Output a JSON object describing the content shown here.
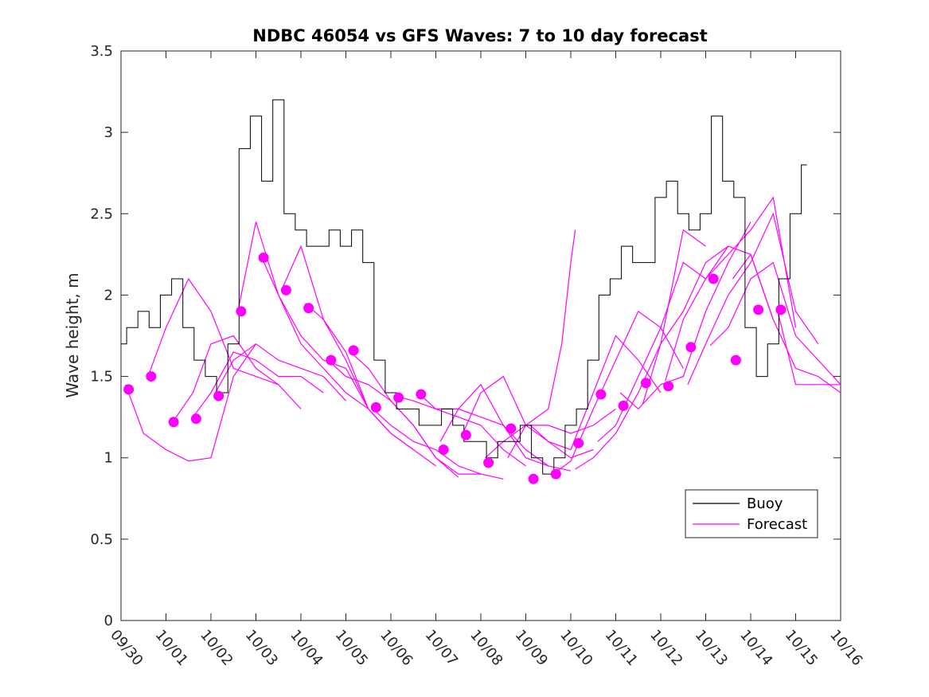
{
  "chart_data": {
    "type": "line",
    "title": "NDBC 46054 vs GFS Waves: 7 to 10 day forecast",
    "xlabel": "",
    "ylabel": "Wave height, m",
    "xlim": [
      0,
      16
    ],
    "ylim": [
      0,
      3.5
    ],
    "grid": false,
    "legend_position": "bottom-right",
    "colors": {
      "buoy": "#000000",
      "forecast": "#ff00ff",
      "axis": "#262626"
    },
    "xticks": [
      0,
      1,
      2,
      3,
      4,
      5,
      6,
      7,
      8,
      9,
      10,
      11,
      12,
      13,
      14,
      15,
      16
    ],
    "xtick_labels": [
      "09/30",
      "10/01",
      "10/02",
      "10/03",
      "10/04",
      "10/05",
      "10/06",
      "10/07",
      "10/08",
      "10/09",
      "10/10",
      "10/11",
      "10/12",
      "10/13",
      "10/14",
      "10/15",
      "10/16"
    ],
    "yticks": [
      0,
      0.5,
      1,
      1.5,
      2,
      2.5,
      3,
      3.5
    ],
    "ytick_labels": [
      "0",
      "0.5",
      "1",
      "1.5",
      "2",
      "2.5",
      "3",
      "3.5"
    ],
    "legend": [
      {
        "key": "buoy",
        "label": "Buoy"
      },
      {
        "key": "forecast",
        "label": "Forecast"
      }
    ],
    "buoy": {
      "name": "Buoy",
      "x": [
        0,
        0.25,
        0.5,
        0.75,
        1,
        1.25,
        1.5,
        1.75,
        2,
        2.25,
        2.5,
        2.75,
        3,
        3.25,
        3.5,
        3.75,
        4,
        4.25,
        4.5,
        4.75,
        5,
        5.25,
        5.5,
        5.75,
        6,
        6.25,
        6.5,
        6.75,
        7,
        7.25,
        7.5,
        7.75,
        8,
        8.25,
        8.5,
        8.75,
        9,
        9.25,
        9.5,
        9.75,
        10,
        10.25,
        10.5,
        10.75,
        11,
        11.25,
        11.5,
        11.75,
        12,
        12.25,
        12.5,
        12.75,
        13,
        13.25,
        13.5,
        13.75,
        14,
        14.25,
        14.5,
        14.75,
        15,
        15.25
      ],
      "y": [
        1.7,
        1.8,
        1.9,
        1.8,
        2.0,
        2.1,
        1.8,
        1.6,
        1.5,
        1.4,
        1.7,
        2.9,
        3.1,
        2.7,
        3.2,
        2.5,
        2.4,
        2.3,
        2.3,
        2.4,
        2.3,
        2.4,
        2.2,
        1.6,
        1.4,
        1.3,
        1.3,
        1.2,
        1.2,
        1.3,
        1.2,
        1.1,
        1.1,
        1.0,
        1.1,
        1.1,
        1.2,
        1.0,
        0.9,
        1.0,
        1.2,
        1.3,
        1.6,
        2.0,
        2.1,
        2.3,
        2.2,
        2.2,
        2.6,
        2.7,
        2.5,
        2.4,
        2.5,
        3.1,
        2.7,
        2.6,
        1.8,
        1.5,
        1.7,
        2.1,
        2.5,
        2.8
      ]
    },
    "forecast_series": [
      {
        "x": [
          0.1,
          0.5,
          1.0,
          1.5,
          2.0,
          2.5,
          3.0
        ],
        "y": [
          1.45,
          1.15,
          1.05,
          0.98,
          1.0,
          1.5,
          1.7
        ]
      },
      {
        "x": [
          0.6,
          1.0,
          1.5,
          2.0,
          2.5,
          3.0,
          3.5
        ],
        "y": [
          1.5,
          1.8,
          2.1,
          1.9,
          1.55,
          1.5,
          1.45
        ]
      },
      {
        "x": [
          1.1,
          1.6,
          2.0,
          2.5,
          3.0,
          3.5,
          4.0
        ],
        "y": [
          1.2,
          1.4,
          1.7,
          1.75,
          1.55,
          1.45,
          1.3
        ]
      },
      {
        "x": [
          1.6,
          2.0,
          2.5,
          3.0,
          3.5,
          4.0,
          4.5
        ],
        "y": [
          1.25,
          1.4,
          1.65,
          1.6,
          1.5,
          1.5,
          1.4
        ]
      },
      {
        "x": [
          2.1,
          2.5,
          3.0,
          3.5,
          4.0,
          4.5,
          5.0
        ],
        "y": [
          1.4,
          1.6,
          1.7,
          1.6,
          1.55,
          1.5,
          1.35
        ]
      },
      {
        "x": [
          2.6,
          3.0,
          3.5,
          4.0,
          4.5,
          5.0,
          5.5
        ],
        "y": [
          1.9,
          2.45,
          2.0,
          1.7,
          1.55,
          1.4,
          1.3
        ]
      },
      {
        "x": [
          3.1,
          3.5,
          4.0,
          4.5,
          5.0,
          5.5,
          6.0
        ],
        "y": [
          2.25,
          2.0,
          1.75,
          1.6,
          1.55,
          1.3,
          1.15
        ]
      },
      {
        "x": [
          3.6,
          4.0,
          4.5,
          5.0,
          5.5,
          6.0,
          6.5
        ],
        "y": [
          2.05,
          2.3,
          1.85,
          1.6,
          1.3,
          1.15,
          1.05
        ]
      },
      {
        "x": [
          4.1,
          4.5,
          5.0,
          5.5,
          6.0,
          6.5,
          7.0
        ],
        "y": [
          1.95,
          1.85,
          1.65,
          1.3,
          1.15,
          1.05,
          0.95
        ]
      },
      {
        "x": [
          4.6,
          5.0,
          5.5,
          6.0,
          6.5,
          7.0,
          7.5
        ],
        "y": [
          1.6,
          1.5,
          1.45,
          1.35,
          1.2,
          1.0,
          0.88
        ]
      },
      {
        "x": [
          5.1,
          5.5,
          6.0,
          6.5,
          7.0,
          7.5,
          8.0
        ],
        "y": [
          1.65,
          1.55,
          1.35,
          1.2,
          1.0,
          0.9,
          0.9
        ]
      },
      {
        "x": [
          5.6,
          6.0,
          6.5,
          7.0,
          7.5,
          8.0,
          8.5
        ],
        "y": [
          1.3,
          1.2,
          1.1,
          1.05,
          0.95,
          0.9,
          0.87
        ]
      },
      {
        "x": [
          6.1,
          6.5,
          7.0,
          7.5,
          8.0,
          8.5,
          9.0
        ],
        "y": [
          1.38,
          1.35,
          1.3,
          1.25,
          1.2,
          1.05,
          0.95
        ]
      },
      {
        "x": [
          6.6,
          7.0,
          7.5,
          8.0,
          8.5,
          9.0,
          9.5
        ],
        "y": [
          1.4,
          1.3,
          1.3,
          1.25,
          1.2,
          1.05,
          0.95
        ]
      },
      {
        "x": [
          7.1,
          7.5,
          8.0,
          8.5,
          9.0,
          9.5,
          10.0
        ],
        "y": [
          1.1,
          1.3,
          1.45,
          1.2,
          1.0,
          0.95,
          0.92
        ]
      },
      {
        "x": [
          7.6,
          8.0,
          8.5,
          9.0,
          9.5,
          10.0,
          10.5
        ],
        "y": [
          1.15,
          1.4,
          1.5,
          1.2,
          1.1,
          1.0,
          1.05
        ]
      },
      {
        "x": [
          8.1,
          8.5,
          9.0,
          9.5,
          10.0,
          10.5,
          11.0
        ],
        "y": [
          1.0,
          1.1,
          1.2,
          1.2,
          1.15,
          1.2,
          1.3
        ]
      },
      {
        "x": [
          8.6,
          9.0,
          9.5,
          9.8,
          10.0,
          10.1
        ],
        "y": [
          1.0,
          1.2,
          1.3,
          1.7,
          2.2,
          2.4
        ]
      },
      {
        "x": [
          9.1,
          9.5,
          10.0,
          10.5,
          11.0,
          11.5,
          12.0
        ],
        "y": [
          1.2,
          1.1,
          1.05,
          1.4,
          1.75,
          1.6,
          1.4
        ]
      },
      {
        "x": [
          9.6,
          10.0,
          10.5,
          11.0,
          11.5,
          12.0,
          12.5
        ],
        "y": [
          0.9,
          0.98,
          1.3,
          1.6,
          1.9,
          1.8,
          1.55
        ]
      },
      {
        "x": [
          10.1,
          10.5,
          11.0,
          11.5,
          12.0,
          12.5,
          13.0
        ],
        "y": [
          0.93,
          1.0,
          1.15,
          1.4,
          1.7,
          2.4,
          2.3
        ]
      },
      {
        "x": [
          10.6,
          11.0,
          11.5,
          12.0,
          12.5,
          13.0,
          13.5
        ],
        "y": [
          1.1,
          1.2,
          1.5,
          1.8,
          2.2,
          2.1,
          2.3
        ]
      },
      {
        "x": [
          11.1,
          11.5,
          12.0,
          12.5,
          13.0,
          13.5,
          14.0
        ],
        "y": [
          1.4,
          1.3,
          1.45,
          1.5,
          1.9,
          2.2,
          2.45
        ]
      },
      {
        "x": [
          11.6,
          12.0,
          12.5,
          13.0,
          13.5,
          14.0,
          14.5
        ],
        "y": [
          1.33,
          1.7,
          1.9,
          2.2,
          2.3,
          2.25,
          1.85
        ]
      },
      {
        "x": [
          12.1,
          12.5,
          13.0,
          13.5,
          14.0,
          14.5,
          15.0
        ],
        "y": [
          1.47,
          1.85,
          2.1,
          2.25,
          2.4,
          2.6,
          1.8
        ]
      },
      {
        "x": [
          12.6,
          13.0,
          13.5,
          14.0,
          14.5,
          15.0,
          15.5
        ],
        "y": [
          1.45,
          1.7,
          2.0,
          2.2,
          2.5,
          1.9,
          1.7
        ]
      },
      {
        "x": [
          13.1,
          13.5,
          14.0,
          14.5,
          15.0,
          15.5,
          16.0
        ],
        "y": [
          1.69,
          1.8,
          2.1,
          2.2,
          1.75,
          1.6,
          1.45
        ]
      },
      {
        "x": [
          13.6,
          14.0,
          14.5,
          15.0,
          15.5,
          16.0
        ],
        "y": [
          2.1,
          2.25,
          1.85,
          1.55,
          1.5,
          1.4
        ]
      },
      {
        "x": [
          14.6,
          15.0,
          15.5,
          16.0
        ],
        "y": [
          1.9,
          1.45,
          1.45,
          1.45
        ]
      }
    ],
    "forecast_points": {
      "x": [
        0.17,
        0.67,
        1.17,
        1.67,
        2.17,
        2.67,
        3.17,
        3.67,
        4.17,
        4.67,
        5.17,
        5.67,
        6.17,
        6.67,
        7.17,
        7.67,
        8.17,
        8.67,
        9.17,
        9.67,
        10.17,
        10.67,
        11.17,
        11.67,
        12.17,
        12.67,
        13.17,
        13.67,
        14.17,
        14.67
      ],
      "y": [
        1.42,
        1.5,
        1.22,
        1.24,
        1.38,
        1.9,
        2.23,
        2.03,
        1.92,
        1.6,
        1.66,
        1.31,
        1.37,
        1.39,
        1.05,
        1.14,
        0.97,
        1.18,
        0.87,
        0.9,
        1.09,
        1.39,
        1.32,
        1.46,
        1.44,
        1.68,
        2.1,
        1.6,
        1.91,
        1.91
      ]
    }
  }
}
